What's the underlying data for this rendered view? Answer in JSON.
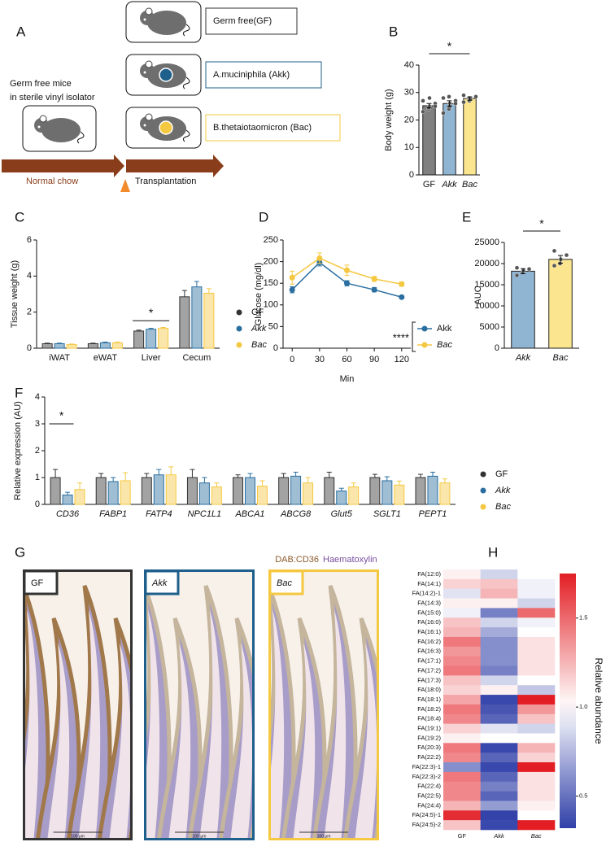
{
  "schematic": {
    "label": "A",
    "groups": [
      "Germ free(GF)",
      "A.muciniphila (Akk)",
      "B.thetaiotaomicron (Bac)"
    ],
    "donor_note": [
      "Germ free mice",
      "in sterile vinyl isolator"
    ],
    "phases": [
      "Normal chow",
      "Transplantation"
    ]
  },
  "chart_data": [
    {
      "type": "bar",
      "label": "B",
      "categories": [
        "GF",
        "Akk",
        "Bac"
      ],
      "colors": [
        "#808080",
        "#8fb5d3",
        "#fbe58f"
      ],
      "values": [
        25.2,
        26.0,
        27.8
      ],
      "errors": [
        0.8,
        1.0,
        0.6
      ],
      "points": [
        [
          23,
          24,
          25,
          26,
          27,
          24.5,
          28,
          25
        ],
        [
          22.5,
          24,
          26,
          27,
          28,
          28.5,
          25,
          26
        ],
        [
          26.5,
          27,
          28,
          28.5,
          29,
          28,
          27.5
        ]
      ],
      "ylabel": "Body weight (g)",
      "ylim": [
        0,
        40
      ],
      "yticks": [
        0,
        10,
        20,
        30,
        40
      ],
      "annotation": "*"
    },
    {
      "type": "grouped-bar",
      "label": "C",
      "categories": [
        "iWAT",
        "eWAT",
        "Liver",
        "Cecum"
      ],
      "series": [
        {
          "name": "GF",
          "color": "#333333",
          "values": [
            0.25,
            0.25,
            0.95,
            2.85
          ],
          "errors": [
            0.03,
            0.03,
            0.05,
            0.35
          ]
        },
        {
          "name": "Akk",
          "color": "#2a6fa0",
          "values": [
            0.25,
            0.3,
            1.05,
            3.4
          ],
          "errors": [
            0.03,
            0.04,
            0.05,
            0.3
          ]
        },
        {
          "name": "Bac",
          "color": "#f5c842",
          "values": [
            0.2,
            0.3,
            1.1,
            3.05
          ],
          "errors": [
            0.03,
            0.04,
            0.05,
            0.25
          ]
        }
      ],
      "ylabel": "Tissue weight (g)",
      "ylim": [
        0,
        6
      ],
      "yticks": [
        0,
        2,
        4,
        6
      ],
      "annotation": "*"
    },
    {
      "type": "line",
      "label": "D",
      "x": [
        0,
        30,
        60,
        90,
        120
      ],
      "series": [
        {
          "name": "Akk",
          "color": "#2a6fa0",
          "values": [
            135,
            198,
            150,
            135,
            118
          ],
          "errors": [
            7,
            8,
            6,
            5,
            3
          ]
        },
        {
          "name": "Bac",
          "color": "#f5c842",
          "values": [
            163,
            208,
            180,
            160,
            148
          ],
          "errors": [
            15,
            12,
            12,
            6,
            5
          ]
        }
      ],
      "xlabel": "Min",
      "ylabel": "Glucose (mg/dl)",
      "xlim": [
        -10,
        130
      ],
      "xticks": [
        0,
        30,
        60,
        90,
        120
      ],
      "ylim": [
        0,
        250
      ],
      "yticks": [
        0,
        50,
        100,
        150,
        200,
        250
      ],
      "annotation": "****"
    },
    {
      "type": "bar",
      "label": "E",
      "categories": [
        "Akk",
        "Bac"
      ],
      "colors": [
        "#8fb5d3",
        "#fbe58f"
      ],
      "values": [
        18200,
        21000
      ],
      "errors": [
        600,
        900
      ],
      "points": [
        [
          17200,
          18000,
          18300,
          18700,
          19000
        ],
        [
          19500,
          20000,
          21000,
          22000,
          23000
        ]
      ],
      "ylabel": "AUC",
      "ylim": [
        0,
        25000
      ],
      "yticks": [
        0,
        5000,
        10000,
        15000,
        20000,
        25000
      ],
      "annotation": "*"
    },
    {
      "type": "grouped-bar",
      "label": "F",
      "categories": [
        "CD36",
        "FABP1",
        "FATP4",
        "NPC1L1",
        "ABCA1",
        "ABCG8",
        "Glut5",
        "SGLT1",
        "PEPT1"
      ],
      "series": [
        {
          "name": "GF",
          "color": "#333333",
          "values": [
            1.0,
            1.0,
            1.0,
            1.0,
            1.0,
            1.0,
            1.0,
            1.0,
            1.0
          ],
          "errors": [
            0.3,
            0.15,
            0.15,
            0.3,
            0.1,
            0.15,
            0.2,
            0.12,
            0.12
          ]
        },
        {
          "name": "Akk",
          "color": "#2a6fa0",
          "values": [
            0.35,
            0.85,
            1.1,
            0.8,
            1.0,
            1.05,
            0.5,
            0.88,
            1.05
          ],
          "errors": [
            0.1,
            0.15,
            0.2,
            0.2,
            0.15,
            0.15,
            0.1,
            0.15,
            0.15
          ]
        },
        {
          "name": "Bac",
          "color": "#f5c842",
          "values": [
            0.55,
            0.88,
            1.1,
            0.65,
            0.68,
            0.8,
            0.65,
            0.72,
            0.8
          ],
          "errors": [
            0.25,
            0.3,
            0.3,
            0.15,
            0.2,
            0.2,
            0.15,
            0.15,
            0.15
          ]
        }
      ],
      "ylabel": "Relative expression (AU)",
      "ylim": [
        0,
        4
      ],
      "yticks": [
        0,
        1,
        2,
        3,
        4
      ],
      "annotation": "*"
    },
    {
      "type": "heatmap",
      "label": "H",
      "columns": [
        "GF",
        "Akk",
        "Bac"
      ],
      "rows": [
        "FA(12:0)",
        "FA(14:1)",
        "FA(14:2)-1",
        "FA(14:3)",
        "FA(15:0)",
        "FA(16:0)",
        "FA(16:1)",
        "FA(16:2)",
        "FA(16:3)",
        "FA(17:1)",
        "FA(17:2)",
        "FA(17:3)",
        "FA(18:0)",
        "FA(18:1)",
        "FA(18:2)",
        "FA(18:4)",
        "FA(19:1)",
        "FA(19:2)",
        "FA(20:3)",
        "FA(22:2)",
        "FA(22:3)-1",
        "FA(22:3)-2",
        "FA(22:4)",
        "FA(22:5)",
        "FA(24:4)",
        "FA(24:5)-1",
        "FA(24:5)-2"
      ],
      "values": [
        [
          1.05,
          0.85,
          1.0
        ],
        [
          1.15,
          1.2,
          0.95
        ],
        [
          0.9,
          1.25,
          0.95
        ],
        [
          1.05,
          1.05,
          0.85
        ],
        [
          0.95,
          0.55,
          1.5
        ],
        [
          1.2,
          0.85,
          0.95
        ],
        [
          1.25,
          0.7,
          1.0
        ],
        [
          1.45,
          0.6,
          1.1
        ],
        [
          1.35,
          0.6,
          1.1
        ],
        [
          1.4,
          0.6,
          1.1
        ],
        [
          1.45,
          0.55,
          1.1
        ],
        [
          1.2,
          0.85,
          1.0
        ],
        [
          1.15,
          1.05,
          0.8
        ],
        [
          1.3,
          0.35,
          1.75
        ],
        [
          1.45,
          0.4,
          1.35
        ],
        [
          1.4,
          0.45,
          1.2
        ],
        [
          1.15,
          0.9,
          0.85
        ],
        [
          1.05,
          1.0,
          1.0
        ],
        [
          1.45,
          0.35,
          1.25
        ],
        [
          1.4,
          0.45,
          1.15
        ],
        [
          0.6,
          0.35,
          1.75
        ],
        [
          1.45,
          0.45,
          1.1
        ],
        [
          1.4,
          0.55,
          1.1
        ],
        [
          1.4,
          0.45,
          1.1
        ],
        [
          1.25,
          0.65,
          1.05
        ],
        [
          1.7,
          0.33,
          1.0
        ],
        [
          1.2,
          0.35,
          1.75
        ]
      ],
      "zlim": [
        0.32,
        1.75
      ],
      "zticks": [
        0.5,
        {
          "value": 1.0,
          "label": "1.0"
        },
        1.5
      ],
      "colorbar_label": "Relative abundance"
    }
  ],
  "histology": {
    "label": "G",
    "stain_labels": [
      "DAB:CD36",
      "Haematoxylin"
    ],
    "panels": [
      "GF",
      "Akk",
      "Bac"
    ],
    "scale_bar": "100 μm"
  }
}
